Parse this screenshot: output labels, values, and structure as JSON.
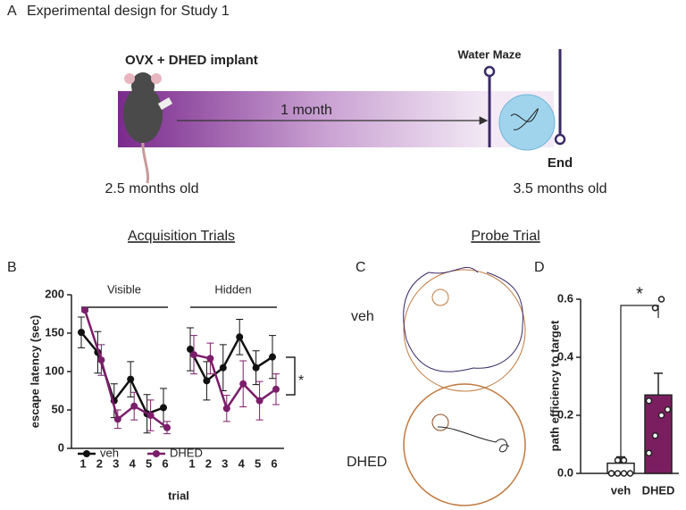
{
  "panel_a": {
    "letter": "A",
    "title": "Experimental design for Study 1",
    "start_event": "OVX + DHED implant",
    "duration": "1 month",
    "test_event": "Water Maze",
    "end_event": "End",
    "start_age": "2.5 months old",
    "end_age": "3.5 months old"
  },
  "headings": {
    "acquisition": "Acquisition Trials",
    "probe": "Probe Trial"
  },
  "panel_c": {
    "letter": "C",
    "top_label": "veh",
    "bottom_label": "DHED"
  },
  "chart_data": [
    {
      "type": "line",
      "letter": "B",
      "ylabel": "escape latency (sec)",
      "xlabel": "trial",
      "groups": [
        {
          "name": "Visible",
          "categories": [
            "1",
            "2",
            "3",
            "4",
            "5",
            "6"
          ]
        },
        {
          "name": "Hidden",
          "categories": [
            "1",
            "2",
            "3",
            "4",
            "5",
            "6"
          ]
        }
      ],
      "series": [
        {
          "name": "veh",
          "color": "#111111",
          "values": [
            [
              151,
              125,
              62,
              90,
              45,
              53
            ],
            [
              129,
              88,
              105,
              145,
              105,
              119
            ]
          ],
          "errors": [
            [
              20,
              27,
              22,
              23,
              25,
              25
            ],
            [
              28,
              25,
              30,
              23,
              22,
              28
            ]
          ]
        },
        {
          "name": "DHED",
          "color": "#7b1e6a",
          "values": [
            [
              180,
              115,
              38,
              55,
              43,
              27
            ],
            [
              122,
              117,
              52,
              84,
              62,
              77
            ]
          ],
          "errors": [
            [
              2,
              20,
              12,
              18,
              20,
              8
            ],
            [
              25,
              20,
              17,
              30,
              25,
              20
            ]
          ]
        }
      ],
      "ylim": [
        0,
        200
      ],
      "yticks": [
        0,
        50,
        100,
        150,
        200
      ],
      "annotation": "*"
    },
    {
      "type": "bar",
      "letter": "D",
      "ylabel": "path efficiency to target",
      "categories": [
        "veh",
        "DHED"
      ],
      "values": [
        0.035,
        0.27
      ],
      "errors": [
        0.022,
        0.075
      ],
      "colors": [
        "#ffffff",
        "#7b1e5f"
      ],
      "points": [
        [
          0,
          0,
          0,
          0,
          0,
          0.045,
          0.045
        ],
        [
          0.07,
          0.13,
          0.2,
          0.22,
          0.25,
          0.57,
          0.6
        ]
      ],
      "ylim": [
        0,
        0.6
      ],
      "yticks": [
        {
          "value": 0,
          "label": "0.0"
        },
        0.2,
        0.4,
        0.6
      ],
      "annotation": "*"
    }
  ]
}
